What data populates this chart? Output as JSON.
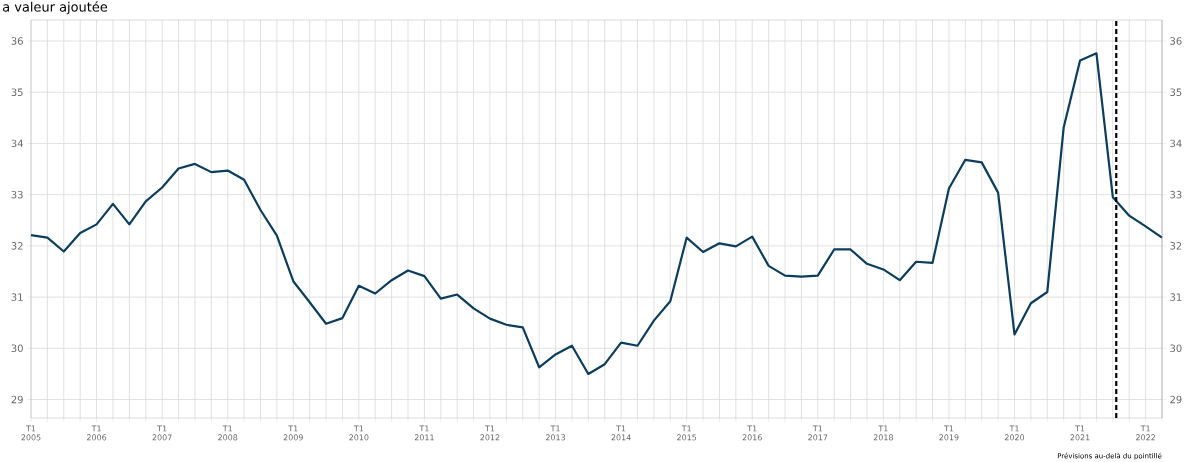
{
  "chart_data": {
    "type": "line",
    "title": "a valeur ajoutée",
    "x": [
      "2005-01",
      "2005-04",
      "2005-07",
      "2005-10",
      "2006-01",
      "2006-04",
      "2006-07",
      "2006-10",
      "2007-01",
      "2007-04",
      "2007-07",
      "2007-10",
      "2008-01",
      "2008-04",
      "2008-07",
      "2008-10",
      "2009-01",
      "2009-04",
      "2009-07",
      "2009-10",
      "2010-01",
      "2010-04",
      "2010-07",
      "2010-10",
      "2011-01",
      "2011-04",
      "2011-07",
      "2011-10",
      "2012-01",
      "2012-04",
      "2012-07",
      "2012-10",
      "2013-01",
      "2013-04",
      "2013-07",
      "2013-10",
      "2014-01",
      "2014-04",
      "2014-07",
      "2014-10",
      "2015-01",
      "2015-04",
      "2015-07",
      "2015-10",
      "2016-01",
      "2016-04",
      "2016-07",
      "2016-10",
      "2017-01",
      "2017-04",
      "2017-07",
      "2017-10",
      "2018-01",
      "2018-04",
      "2018-07",
      "2018-10",
      "2019-01",
      "2019-04",
      "2019-07",
      "2019-10",
      "2020-01",
      "2020-04",
      "2020-07",
      "2020-10",
      "2021-01",
      "2021-04",
      "2021-07",
      "2021-10",
      "2022-01",
      "2022-04"
    ],
    "series": [
      {
        "color": "#0b3d5c",
        "values": [
          32.21,
          32.16,
          31.89,
          32.25,
          32.42,
          32.82,
          32.42,
          32.87,
          33.14,
          33.51,
          33.6,
          33.44,
          33.47,
          33.29,
          32.7,
          32.2,
          31.31,
          30.9,
          30.48,
          30.59,
          31.22,
          31.07,
          31.33,
          31.52,
          31.41,
          30.97,
          31.05,
          30.78,
          30.58,
          30.46,
          30.41,
          29.63,
          29.88,
          30.05,
          29.5,
          29.69,
          30.11,
          30.05,
          30.54,
          30.92,
          32.16,
          31.88,
          32.05,
          31.99,
          32.18,
          31.61,
          31.42,
          31.4,
          31.42,
          31.93,
          31.93,
          31.65,
          31.54,
          31.33,
          31.69,
          31.67,
          33.12,
          33.68,
          33.63,
          33.04,
          30.27,
          30.88,
          31.1,
          34.31,
          35.62,
          35.76,
          32.95,
          32.59,
          32.38,
          32.16
        ]
      }
    ],
    "xlim": [
      "2005-01",
      "2022-04"
    ],
    "xticks": [
      {
        "value": "2005-01",
        "label": "T1 2005"
      },
      {
        "value": "2005-04",
        "label": null
      },
      {
        "value": "2005-07",
        "label": null
      },
      {
        "value": "2005-10",
        "label": null
      },
      {
        "value": "2006-01",
        "label": "T1 2006"
      },
      {
        "value": "2006-04",
        "label": null
      },
      {
        "value": "2006-07",
        "label": null
      },
      {
        "value": "2006-10",
        "label": null
      },
      {
        "value": "2007-01",
        "label": "T1 2007"
      },
      {
        "value": "2007-04",
        "label": null
      },
      {
        "value": "2007-07",
        "label": null
      },
      {
        "value": "2007-10",
        "label": null
      },
      {
        "value": "2008-01",
        "label": "T1 2008"
      },
      {
        "value": "2008-04",
        "label": null
      },
      {
        "value": "2008-07",
        "label": null
      },
      {
        "value": "2008-10",
        "label": null
      },
      {
        "value": "2009-01",
        "label": "T1 2009"
      },
      {
        "value": "2009-04",
        "label": null
      },
      {
        "value": "2009-07",
        "label": null
      },
      {
        "value": "2009-10",
        "label": null
      },
      {
        "value": "2010-01",
        "label": "T1 2010"
      },
      {
        "value": "2010-04",
        "label": null
      },
      {
        "value": "2010-07",
        "label": null
      },
      {
        "value": "2010-10",
        "label": null
      },
      {
        "value": "2011-01",
        "label": "T1 2011"
      },
      {
        "value": "2011-04",
        "label": null
      },
      {
        "value": "2011-07",
        "label": null
      },
      {
        "value": "2011-10",
        "label": null
      },
      {
        "value": "2012-01",
        "label": "T1 2012"
      },
      {
        "value": "2012-04",
        "label": null
      },
      {
        "value": "2012-07",
        "label": null
      },
      {
        "value": "2012-10",
        "label": null
      },
      {
        "value": "2013-01",
        "label": "T1 2013"
      },
      {
        "value": "2013-04",
        "label": null
      },
      {
        "value": "2013-07",
        "label": null
      },
      {
        "value": "2013-10",
        "label": null
      },
      {
        "value": "2014-01",
        "label": "T1 2014"
      },
      {
        "value": "2014-04",
        "label": null
      },
      {
        "value": "2014-07",
        "label": null
      },
      {
        "value": "2014-10",
        "label": null
      },
      {
        "value": "2015-01",
        "label": "T1 2015"
      },
      {
        "value": "2015-04",
        "label": null
      },
      {
        "value": "2015-07",
        "label": null
      },
      {
        "value": "2015-10",
        "label": null
      },
      {
        "value": "2016-01",
        "label": "T1 2016"
      },
      {
        "value": "2016-04",
        "label": null
      },
      {
        "value": "2016-07",
        "label": null
      },
      {
        "value": "2016-10",
        "label": null
      },
      {
        "value": "2017-01",
        "label": "T1 2017"
      },
      {
        "value": "2017-04",
        "label": null
      },
      {
        "value": "2017-07",
        "label": null
      },
      {
        "value": "2017-10",
        "label": null
      },
      {
        "value": "2018-01",
        "label": "T1 2018"
      },
      {
        "value": "2018-04",
        "label": null
      },
      {
        "value": "2018-07",
        "label": null
      },
      {
        "value": "2018-10",
        "label": null
      },
      {
        "value": "2019-01",
        "label": "T1 2019"
      },
      {
        "value": "2019-04",
        "label": null
      },
      {
        "value": "2019-07",
        "label": null
      },
      {
        "value": "2019-10",
        "label": null
      },
      {
        "value": "2020-01",
        "label": "T1 2020"
      },
      {
        "value": "2020-04",
        "label": null
      },
      {
        "value": "2020-07",
        "label": null
      },
      {
        "value": "2020-10",
        "label": null
      },
      {
        "value": "2021-01",
        "label": "T1 2021"
      },
      {
        "value": "2021-04",
        "label": null
      },
      {
        "value": "2021-07",
        "label": null
      },
      {
        "value": "2021-10",
        "label": null
      },
      {
        "value": "2022-01",
        "label": "T1 2022"
      },
      {
        "value": "2022-04",
        "label": null
      }
    ],
    "ylim": [
      28.64,
      36.41
    ],
    "yticks": [
      29,
      30,
      31,
      32,
      33,
      34,
      35,
      36
    ],
    "y2lim": [
      28.64,
      36.41
    ],
    "y2ticks": [
      29,
      30,
      31,
      32,
      33,
      34,
      35,
      36
    ],
    "grid": true,
    "ref_lines": [
      {
        "axis": "x",
        "value": "2021-07-20",
        "color": "#000000",
        "line_style": "dashed"
      }
    ],
    "annotations": [
      "Prévisions au-delà du pointillé"
    ]
  }
}
